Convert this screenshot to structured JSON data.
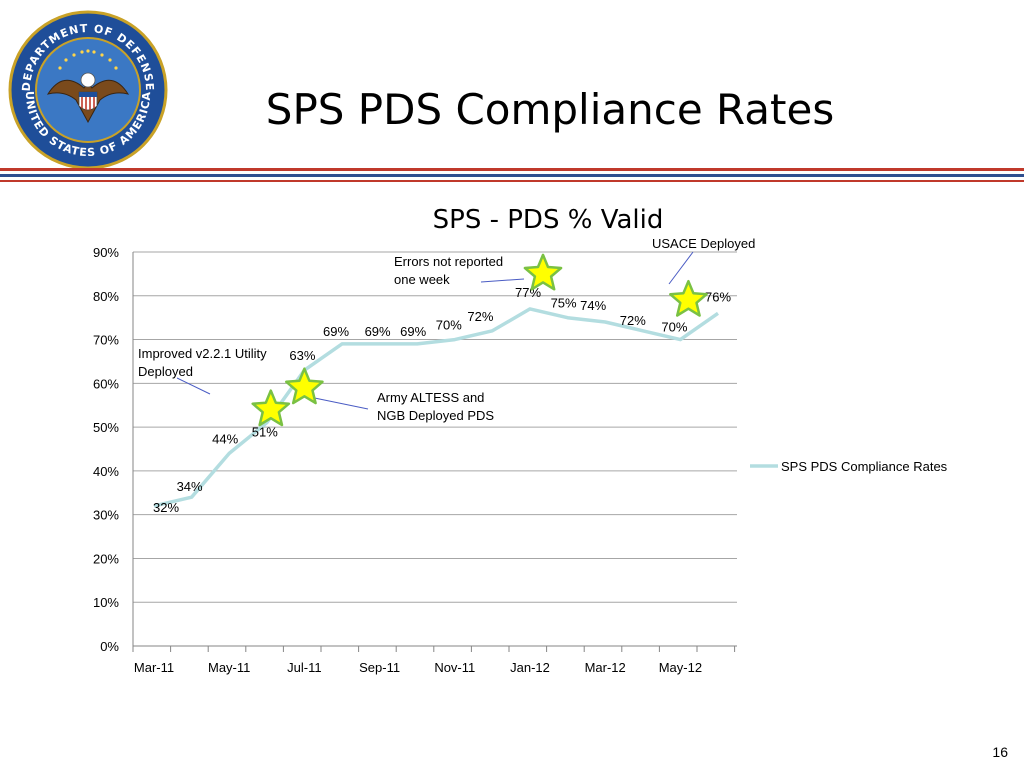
{
  "slide": {
    "title": "SPS PDS Compliance Rates",
    "page_number": "16",
    "seal_text_top": "DEPARTMENT OF DEFENSE",
    "seal_text_bottom": "UNITED STATES OF AMERICA"
  },
  "colors": {
    "series_line": "#b3dde0",
    "star_fill": "#ffff00",
    "star_stroke": "#7ac143",
    "rule_red": "#c0392b",
    "rule_blue": "#2f4f8f",
    "seal_blue": "#1f4e99",
    "seal_gold": "#c9a227"
  },
  "chart_data": {
    "type": "line",
    "title": "SPS - PDS % Valid",
    "xlabel": "",
    "ylabel": "",
    "ylim": [
      0,
      90
    ],
    "y_ticks": [
      "0%",
      "10%",
      "20%",
      "30%",
      "40%",
      "50%",
      "60%",
      "70%",
      "80%",
      "90%"
    ],
    "x_ticks": [
      "Mar-11",
      "May-11",
      "Jul-11",
      "Sep-11",
      "Nov-11",
      "Jan-12",
      "Mar-12",
      "May-12"
    ],
    "grid": true,
    "legend": "right",
    "series": [
      {
        "name": "SPS PDS Compliance Rates",
        "points": [
          {
            "x": "Mar-11",
            "y": 32,
            "label": "32%"
          },
          {
            "x": "Apr-11",
            "y": 34,
            "label": "34%"
          },
          {
            "x": "May-11",
            "y": 44,
            "label": "44%"
          },
          {
            "x": "Jun-11",
            "y": 51,
            "label": "51%"
          },
          {
            "x": "Jul-11",
            "y": 63,
            "label": "63%"
          },
          {
            "x": "Aug-11",
            "y": 69,
            "label": "69%"
          },
          {
            "x": "Sep-11",
            "y": 69,
            "label": "69%"
          },
          {
            "x": "Oct-11",
            "y": 69,
            "label": "69%"
          },
          {
            "x": "Nov-11",
            "y": 70,
            "label": "70%"
          },
          {
            "x": "Dec-11",
            "y": 72,
            "label": "72%"
          },
          {
            "x": "Jan-12",
            "y": 77,
            "label": "77%"
          },
          {
            "x": "Feb-12",
            "y": 75,
            "label": "75%"
          },
          {
            "x": "Mar-12",
            "y": 74,
            "label": "74%"
          },
          {
            "x": "Apr-12",
            "y": 72,
            "label": "72%"
          },
          {
            "x": "May-12",
            "y": 70,
            "label": "70%"
          },
          {
            "x": "Jun-12",
            "y": 76,
            "label": "76%"
          }
        ]
      }
    ],
    "annotations": [
      {
        "lines": [
          "Improved v2.2.1 Utility",
          "Deployed"
        ],
        "x": "Jun-11",
        "y": 54
      },
      {
        "lines": [
          "Army ALTESS and",
          "NGB Deployed PDS"
        ],
        "x": "Jul-11",
        "y": 59
      },
      {
        "lines": [
          "Errors not reported",
          "one week"
        ],
        "x": "Jan-12",
        "y": 85
      },
      {
        "lines": [
          "USACE Deployed"
        ],
        "x": "May-12",
        "y": 79
      }
    ]
  }
}
